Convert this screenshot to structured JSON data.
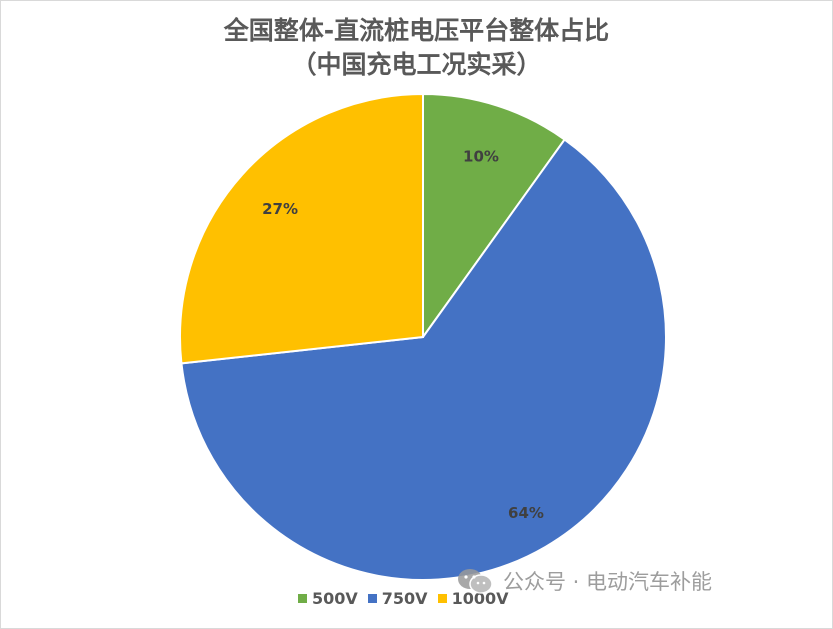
{
  "chart_data": {
    "type": "pie",
    "title_line1": "全国整体-直流桩电压平台整体占比",
    "title_line2": "（中国充电工况实采）",
    "categories": [
      "500V",
      "750V",
      "1000V"
    ],
    "values": [
      10,
      64,
      27
    ],
    "labels": [
      "10%",
      "64%",
      "27%"
    ],
    "colors": [
      "#70ad47",
      "#4472c4",
      "#ffc000"
    ],
    "legend_position": "bottom"
  },
  "watermark": {
    "text": "公众号 · 电动汽车补能",
    "icon": "wechat-icon"
  }
}
